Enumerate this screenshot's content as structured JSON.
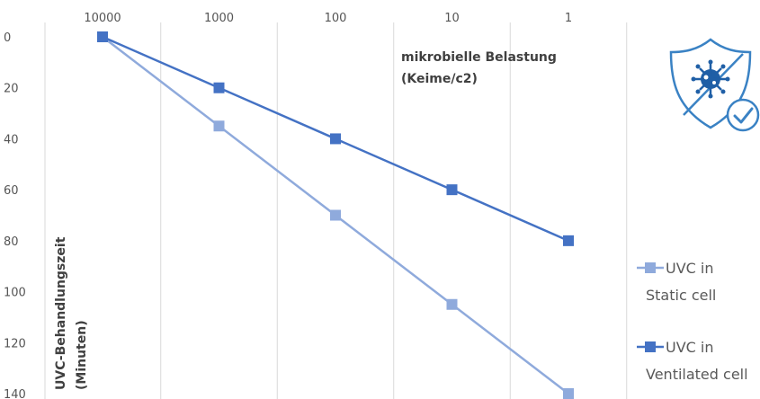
{
  "chart_data": {
    "type": "line",
    "x": [
      "10000",
      "1000",
      "100",
      "10",
      "1"
    ],
    "x_scale": "log",
    "x_reversed": true,
    "x_axis_position": "top",
    "xlabel": [
      "mikrobielle Belastung",
      "(Keime/c2)"
    ],
    "ylabel": [
      "UVC-Behandlungszeit",
      "(Minuten)"
    ],
    "ylim": [
      0,
      140
    ],
    "y_ticks": [
      "0",
      "20",
      "40",
      "60",
      "80",
      "100",
      "120",
      "140"
    ],
    "y_reversed": true,
    "grid": "vertical",
    "legend_position": "right",
    "series": [
      {
        "name": [
          "UVC in",
          "Static cell"
        ],
        "values": [
          0,
          35,
          70,
          105,
          140
        ],
        "color": "#8faadc"
      },
      {
        "name": [
          "UVC in",
          "Ventilated cell"
        ],
        "values": [
          0,
          20,
          40,
          60,
          80
        ],
        "color": "#4472c4"
      }
    ]
  },
  "icon": {
    "name": "virus-shield-check-icon",
    "color": "#3a82c4"
  }
}
